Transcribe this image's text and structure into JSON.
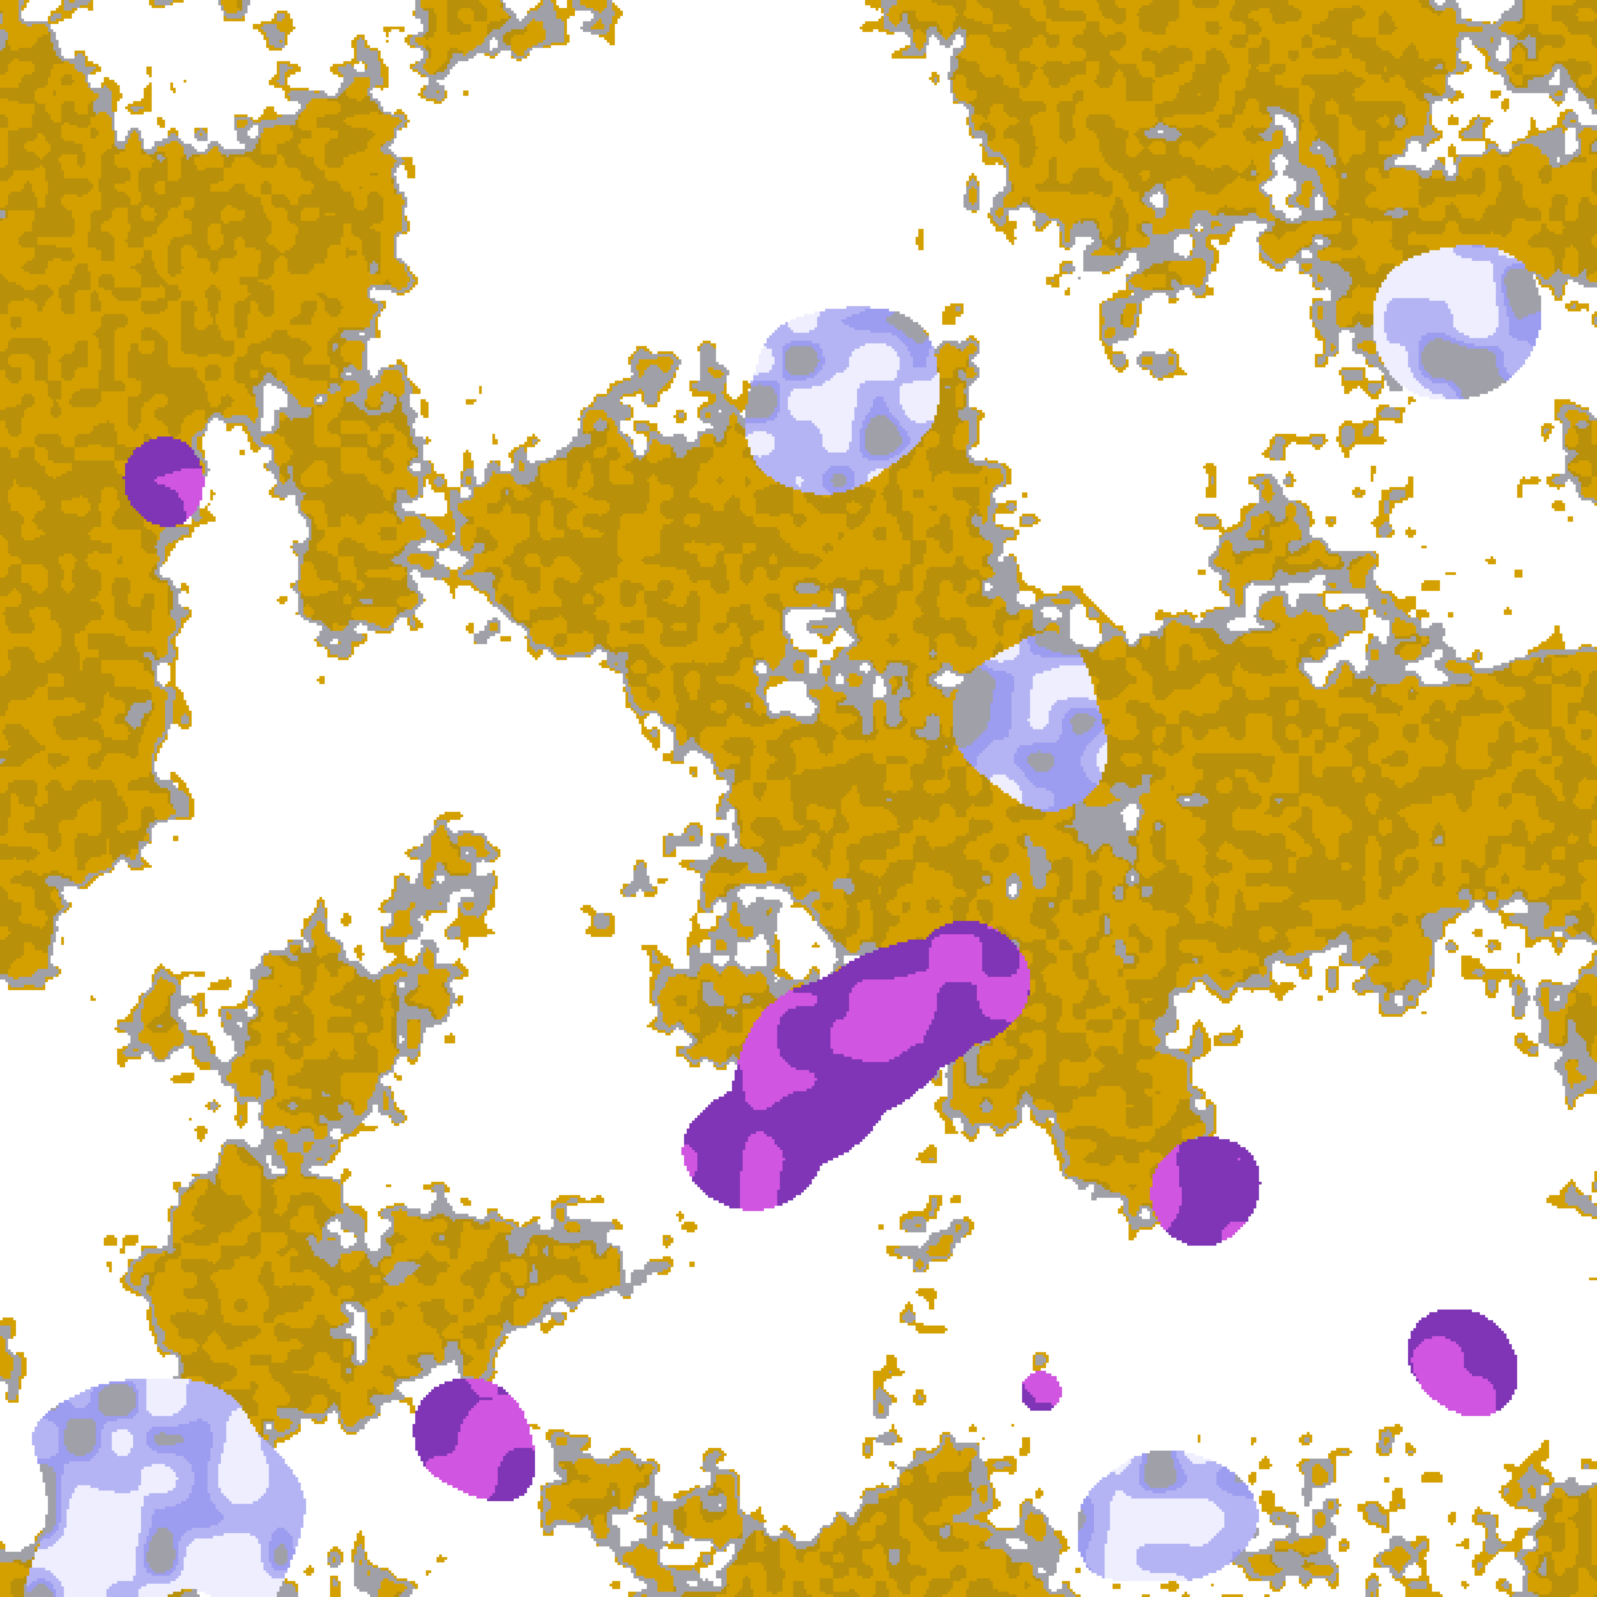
{
  "map": {
    "type": "satellite cloud-classification imagery",
    "palette": {
      "clear": "#ffffff",
      "gold": "#d4a000",
      "gold_dark": "#b8900a",
      "gray": "#a0a0a8",
      "lavender_light": "#eeeeff",
      "lavender": "#b4b4f4",
      "periwinkle": "#9c9cf0",
      "purple": "#7f35b5",
      "magenta": "#d055e0"
    }
  }
}
